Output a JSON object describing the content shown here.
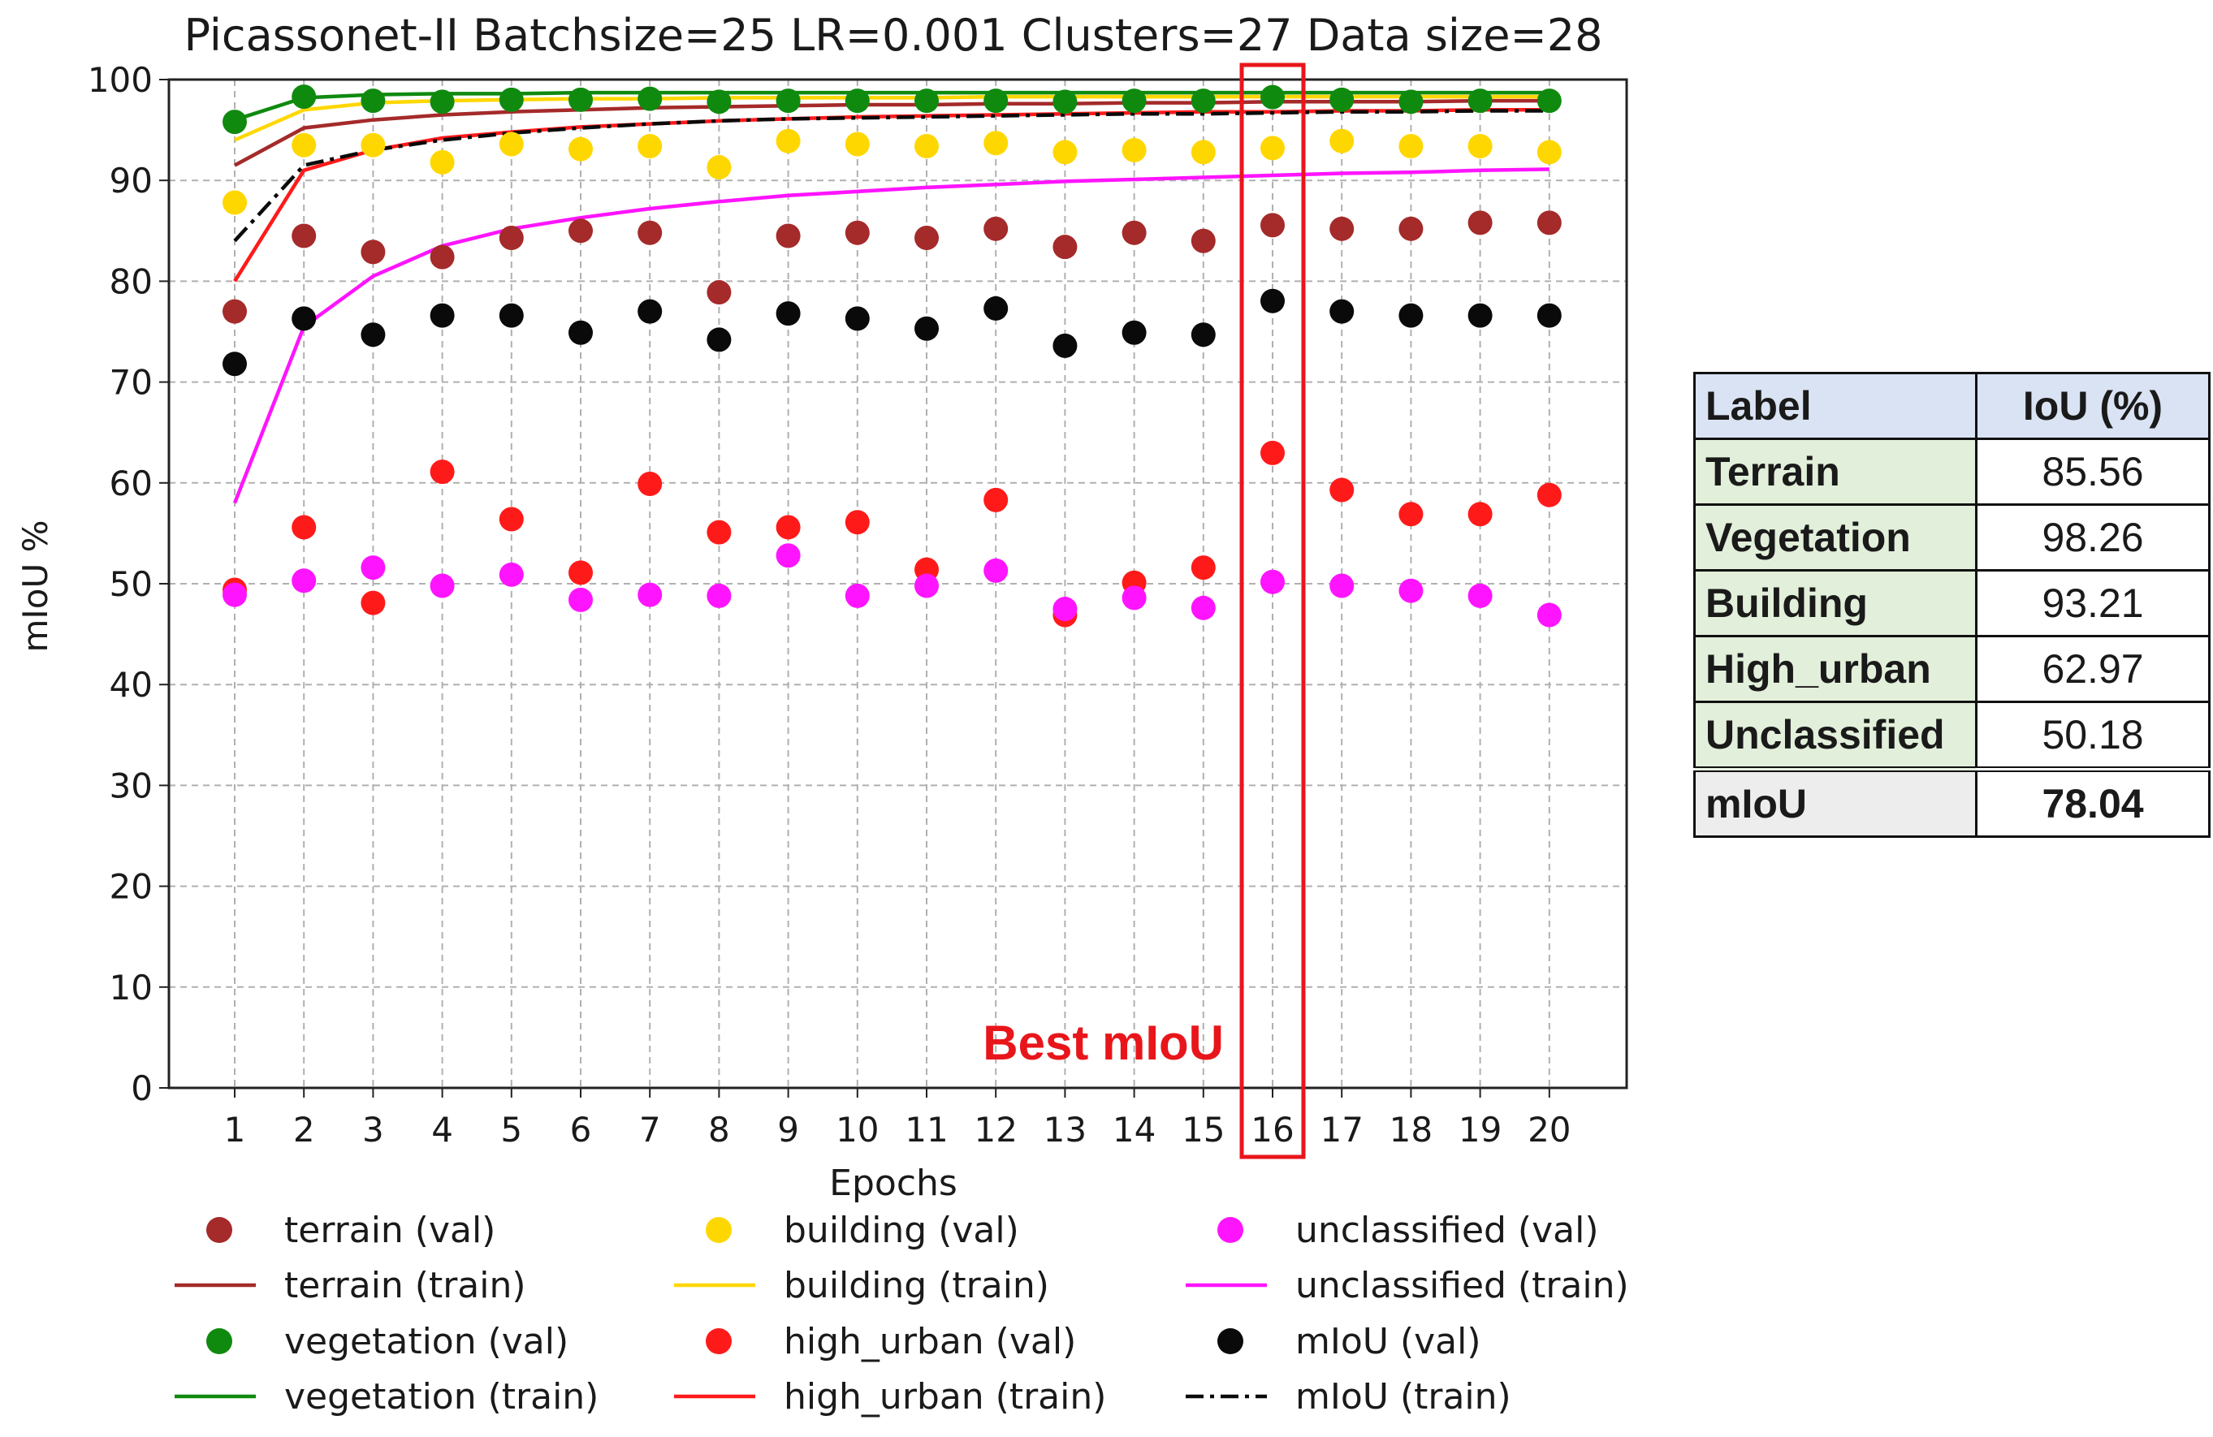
{
  "chart_data": {
    "type": "line",
    "title": "Picassonet-II Batchsize=25 LR=0.001 Clusters=27 Data size=28",
    "xlabel": "Epochs",
    "ylabel": "mIoU %",
    "x": [
      1,
      2,
      3,
      4,
      5,
      6,
      7,
      8,
      9,
      10,
      11,
      12,
      13,
      14,
      15,
      16,
      17,
      18,
      19,
      20
    ],
    "ylim": [
      0,
      100
    ],
    "yticks": [
      0,
      10,
      20,
      30,
      40,
      50,
      60,
      70,
      80,
      90,
      100
    ],
    "grid": true,
    "series": [
      {
        "name": "terrain (val)",
        "kind": "points",
        "color": "#a52a2a",
        "values": [
          77.0,
          84.5,
          82.9,
          82.4,
          84.3,
          85.0,
          84.8,
          78.9,
          84.5,
          84.8,
          84.3,
          85.2,
          83.4,
          84.8,
          84.0,
          85.56,
          85.2,
          85.2,
          85.8,
          85.8
        ]
      },
      {
        "name": "terrain (train)",
        "kind": "line",
        "color": "#a52a2a",
        "dash": "",
        "values": [
          91.5,
          95.2,
          96.0,
          96.5,
          96.8,
          97.0,
          97.2,
          97.3,
          97.4,
          97.5,
          97.5,
          97.6,
          97.6,
          97.7,
          97.7,
          97.8,
          97.8,
          97.8,
          97.9,
          97.9
        ]
      },
      {
        "name": "vegetation (val)",
        "kind": "points",
        "color": "#0f8a0f",
        "values": [
          95.8,
          98.3,
          97.9,
          97.8,
          98.0,
          98.0,
          98.1,
          97.8,
          97.9,
          97.9,
          97.9,
          97.9,
          97.8,
          97.9,
          97.9,
          98.26,
          98.0,
          97.8,
          97.9,
          97.9
        ]
      },
      {
        "name": "vegetation (train)",
        "kind": "line",
        "color": "#0f8a0f",
        "dash": "",
        "values": [
          96.0,
          98.2,
          98.5,
          98.6,
          98.6,
          98.7,
          98.7,
          98.7,
          98.7,
          98.7,
          98.7,
          98.7,
          98.7,
          98.7,
          98.7,
          98.7,
          98.7,
          98.7,
          98.7,
          98.7
        ]
      },
      {
        "name": "building (val)",
        "kind": "points",
        "color": "#ffd700",
        "values": [
          87.8,
          93.5,
          93.5,
          91.8,
          93.6,
          93.1,
          93.4,
          91.3,
          93.9,
          93.6,
          93.4,
          93.7,
          92.8,
          93.0,
          92.8,
          93.21,
          93.9,
          93.4,
          93.4,
          92.8
        ]
      },
      {
        "name": "building (train)",
        "kind": "line",
        "color": "#ffd700",
        "dash": "",
        "values": [
          94.0,
          97.0,
          97.7,
          97.9,
          98.0,
          98.1,
          98.1,
          98.2,
          98.2,
          98.2,
          98.2,
          98.3,
          98.3,
          98.3,
          98.3,
          98.3,
          98.3,
          98.3,
          98.3,
          98.3
        ]
      },
      {
        "name": "high_urban (val)",
        "kind": "points",
        "color": "#ff1a1a",
        "values": [
          49.4,
          55.6,
          48.1,
          61.1,
          56.4,
          51.1,
          59.9,
          55.1,
          55.6,
          56.1,
          51.4,
          58.3,
          46.9,
          50.1,
          51.6,
          62.97,
          59.3,
          56.9,
          56.9,
          58.8
        ]
      },
      {
        "name": "high_urban (train)",
        "kind": "line",
        "color": "#ff1a1a",
        "dash": "",
        "values": [
          80.0,
          91.0,
          93.0,
          94.2,
          94.8,
          95.3,
          95.6,
          95.9,
          96.1,
          96.3,
          96.4,
          96.5,
          96.6,
          96.7,
          96.8,
          96.8,
          96.9,
          96.9,
          97.0,
          97.0
        ]
      },
      {
        "name": "unclassified (val)",
        "kind": "points",
        "color": "#ff14ff",
        "values": [
          48.9,
          50.3,
          51.6,
          49.8,
          50.9,
          48.4,
          48.9,
          48.8,
          52.8,
          48.8,
          49.8,
          51.3,
          47.5,
          48.6,
          47.6,
          50.18,
          49.8,
          49.3,
          48.8,
          46.9
        ]
      },
      {
        "name": "unclassified (train)",
        "kind": "line",
        "color": "#ff14ff",
        "dash": "",
        "values": [
          58.0,
          75.5,
          80.5,
          83.5,
          85.2,
          86.3,
          87.2,
          87.9,
          88.5,
          88.9,
          89.3,
          89.6,
          89.9,
          90.1,
          90.3,
          90.5,
          90.7,
          90.8,
          91.0,
          91.1
        ]
      },
      {
        "name": "mIoU (val)",
        "kind": "points",
        "color": "#0a0a0a",
        "values": [
          71.8,
          76.3,
          74.7,
          76.6,
          76.6,
          74.9,
          77.0,
          74.2,
          76.8,
          76.3,
          75.3,
          77.3,
          73.6,
          74.9,
          74.7,
          78.04,
          77.0,
          76.6,
          76.6,
          76.6
        ]
      },
      {
        "name": "mIoU (train)",
        "kind": "line",
        "color": "#0a0a0a",
        "dash": "22 8 5 8",
        "values": [
          84.0,
          91.5,
          93.0,
          94.0,
          94.7,
          95.2,
          95.6,
          95.9,
          96.1,
          96.2,
          96.3,
          96.4,
          96.5,
          96.6,
          96.6,
          96.7,
          96.8,
          96.8,
          96.9,
          96.9
        ]
      }
    ],
    "legend_order": [
      "terrain (val)",
      "terrain (train)",
      "vegetation (val)",
      "vegetation (train)",
      "building (val)",
      "building (train)",
      "high_urban (val)",
      "high_urban (train)",
      "unclassified (val)",
      "unclassified (train)",
      "mIoU (val)",
      "mIoU (train)"
    ],
    "legend_placement": "bottom",
    "annotation": {
      "text": "Best mIoU",
      "highlight_epoch": 16,
      "color": "#e8161b"
    }
  },
  "iou_table": {
    "headers": [
      "Label",
      "IoU (%)"
    ],
    "rows": [
      {
        "label": "Terrain",
        "value": "85.56"
      },
      {
        "label": "Vegetation",
        "value": "98.26"
      },
      {
        "label": "Building",
        "value": "93.21"
      },
      {
        "label": "High_urban",
        "value": "62.97"
      },
      {
        "label": "Unclassified",
        "value": "50.18"
      }
    ],
    "summary": {
      "label": "mIoU",
      "value": "78.04"
    }
  }
}
